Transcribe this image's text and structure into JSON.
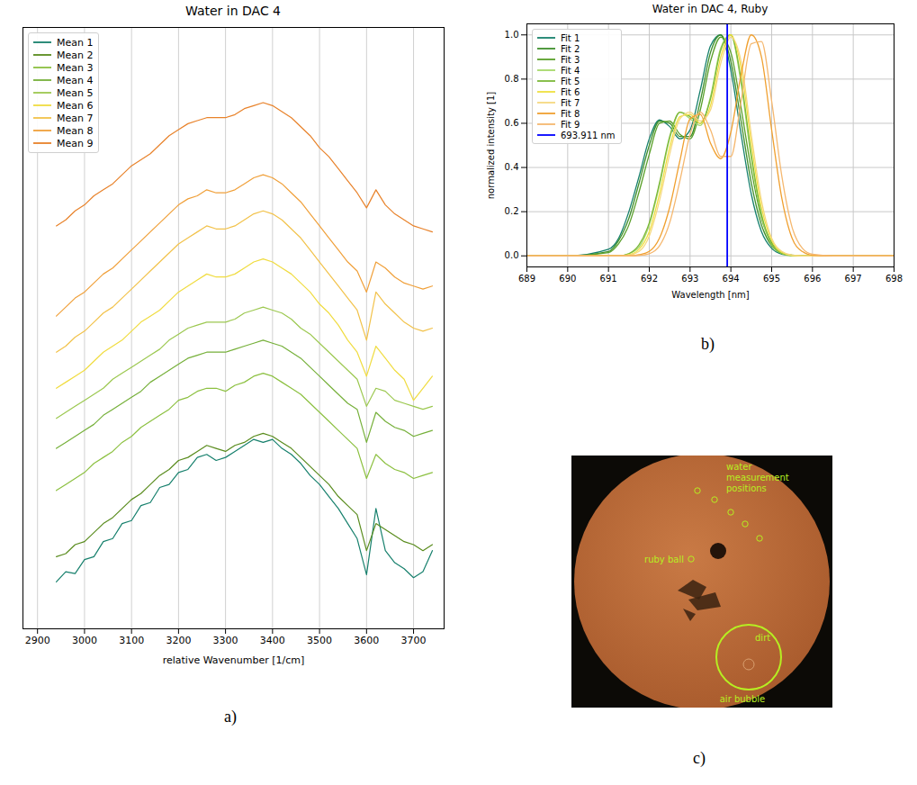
{
  "chart_data": [
    {
      "panel": "a)",
      "type": "line",
      "title": "Water in DAC 4",
      "x_label": "relative Wavenumber [1/cm]",
      "x": [
        2940,
        2960,
        2980,
        3000,
        3020,
        3040,
        3060,
        3080,
        3100,
        3120,
        3140,
        3160,
        3180,
        3200,
        3220,
        3240,
        3260,
        3280,
        3300,
        3320,
        3340,
        3360,
        3380,
        3400,
        3420,
        3440,
        3460,
        3480,
        3500,
        3520,
        3540,
        3560,
        3580,
        3600,
        3620,
        3640,
        3660,
        3680,
        3700,
        3720,
        3740
      ],
      "series": [
        {
          "name": "Mean 1",
          "color": "#17806d",
          "values": [
            7.8,
            9.5,
            9.2,
            11.5,
            12,
            14.5,
            15,
            17.5,
            18,
            20.5,
            21,
            23.5,
            24,
            26,
            26.5,
            28.5,
            29,
            28,
            28.5,
            29.5,
            30.5,
            31.5,
            31,
            31.5,
            30,
            29,
            27.5,
            25.5,
            24,
            22,
            20,
            17.5,
            15,
            9,
            20,
            13,
            11,
            10,
            8.5,
            9.5,
            13
          ]
        },
        {
          "name": "Mean 2",
          "color": "#5a8c1e",
          "values": [
            12,
            12.5,
            14,
            14.5,
            16,
            17.5,
            18.5,
            20,
            21.5,
            22.5,
            24,
            25.5,
            26.5,
            28,
            28.5,
            29.5,
            30.5,
            30,
            29.5,
            30.5,
            31,
            32,
            32.5,
            32,
            31,
            30,
            28.5,
            27,
            25.5,
            24,
            22,
            20.5,
            19,
            13,
            17.5,
            16.5,
            15.5,
            14.5,
            14,
            13,
            14
          ]
        },
        {
          "name": "Mean 3",
          "color": "#8cc040",
          "values": [
            23,
            24,
            25,
            26,
            27.5,
            28.5,
            29.5,
            31,
            32,
            33.5,
            34.5,
            35.5,
            36.5,
            38,
            38.5,
            39.5,
            40,
            40,
            39.5,
            40.5,
            41,
            42,
            42.5,
            42,
            41,
            40,
            39,
            37.5,
            36,
            34.5,
            33,
            31.5,
            30,
            25,
            29,
            27.5,
            26.5,
            26,
            25,
            25.5,
            26
          ]
        },
        {
          "name": "Mean 4",
          "color": "#76b03a",
          "values": [
            30,
            31,
            32,
            33,
            34,
            35.5,
            36.5,
            37.5,
            38.5,
            39.5,
            41,
            42,
            43,
            44,
            45,
            45.5,
            46,
            46,
            46,
            46.5,
            47,
            47.5,
            48,
            47.5,
            47,
            46,
            45,
            43.5,
            42,
            40.5,
            39,
            37.5,
            36.5,
            31,
            36,
            34.5,
            33.5,
            33,
            32,
            32.5,
            33
          ]
        },
        {
          "name": "Mean 5",
          "color": "#9cc850",
          "values": [
            35,
            36,
            37,
            38,
            39,
            40,
            41.5,
            42.5,
            43.5,
            44.5,
            45.5,
            46.5,
            48,
            49,
            50,
            50.5,
            51,
            51,
            51,
            51.5,
            52.5,
            53,
            53.5,
            53,
            52.5,
            51.5,
            50,
            49,
            47.5,
            46,
            44.5,
            43,
            41.5,
            37,
            40,
            39.5,
            38,
            37.5,
            37,
            36.5,
            37
          ]
        },
        {
          "name": "Mean 6",
          "color": "#f0dc40",
          "values": [
            40,
            41,
            42,
            43,
            44.5,
            46,
            47,
            48,
            49.5,
            51,
            52,
            53,
            54.5,
            56,
            57,
            58,
            59,
            58.5,
            58.5,
            59,
            60,
            61,
            61.5,
            61,
            60,
            59,
            57.5,
            56,
            54,
            52.5,
            50.5,
            48,
            46,
            42,
            47,
            45,
            43,
            41.5,
            38,
            40,
            42
          ]
        },
        {
          "name": "Mean 7",
          "color": "#f2c24a",
          "values": [
            46,
            47,
            48.5,
            49.5,
            51,
            52.5,
            53.5,
            55,
            56.5,
            58,
            59.5,
            61,
            62.5,
            64,
            65,
            66,
            67,
            66.5,
            66.5,
            67,
            68,
            69,
            69.5,
            69,
            68,
            66.5,
            65,
            63,
            61,
            59,
            57,
            55,
            53,
            48,
            56,
            54,
            52.5,
            51,
            50,
            49.5,
            50
          ]
        },
        {
          "name": "Mean 8",
          "color": "#f0a03a",
          "values": [
            52,
            53.5,
            55,
            56,
            57.5,
            59,
            60,
            61.5,
            63,
            64.5,
            66,
            67.5,
            69,
            70.5,
            71.5,
            72,
            73,
            72.5,
            72.5,
            73,
            74,
            75,
            75.5,
            75,
            74,
            72.5,
            71,
            69,
            67,
            65,
            63,
            61,
            59.5,
            56,
            61,
            60,
            58.5,
            57.5,
            57,
            56.5,
            57
          ]
        },
        {
          "name": "Mean 9",
          "color": "#e8822a",
          "values": [
            67,
            68,
            69.5,
            70.5,
            72,
            73,
            74,
            75.5,
            77,
            78,
            79,
            80.5,
            82,
            83,
            84,
            84.5,
            85,
            85,
            85,
            85.5,
            86.5,
            87,
            87.5,
            87,
            86,
            85,
            83.5,
            82,
            80,
            78.5,
            76.5,
            74.5,
            72.5,
            70,
            73,
            70.5,
            69,
            68,
            67,
            66.5,
            66
          ]
        }
      ],
      "xlim": [
        2869,
        3765
      ],
      "xticks": [
        2900,
        3000,
        3100,
        3200,
        3300,
        3400,
        3500,
        3600,
        3700
      ],
      "ylim": [
        0,
        100
      ],
      "grid": true,
      "legend": "upper left",
      "tick_labels": "x"
    },
    {
      "panel": "b)",
      "type": "line",
      "title": "Water in DAC 4, Ruby",
      "x_label": "Wavelength [nm]",
      "y_label": "normalized intensity [1]",
      "x": [
        689,
        690,
        691,
        691.25,
        691.5,
        691.75,
        692,
        692.25,
        692.5,
        692.75,
        693,
        693.25,
        693.5,
        693.75,
        694,
        694.25,
        694.5,
        694.75,
        695,
        695.25,
        695.5,
        695.75,
        696,
        696.5,
        697,
        698
      ],
      "series": [
        {
          "name": "Fit 1",
          "color": "#17806d",
          "values": [
            0,
            0,
            0.03,
            0.08,
            0.2,
            0.36,
            0.53,
            0.615,
            0.585,
            0.53,
            0.57,
            0.75,
            0.95,
            1,
            0.84,
            0.55,
            0.28,
            0.11,
            0.034,
            0.008,
            0.002,
            0,
            0,
            0,
            0,
            0
          ]
        },
        {
          "name": "Fit 2",
          "color": "#3f8f2c",
          "values": [
            0,
            0,
            0.02,
            0.07,
            0.17,
            0.33,
            0.5,
            0.61,
            0.6,
            0.54,
            0.54,
            0.7,
            0.92,
            1,
            0.88,
            0.61,
            0.33,
            0.14,
            0.045,
            0.011,
            0.002,
            0,
            0,
            0,
            0,
            0
          ]
        },
        {
          "name": "Fit 3",
          "color": "#5aa02a",
          "values": [
            0,
            0,
            0.015,
            0.055,
            0.14,
            0.29,
            0.46,
            0.6,
            0.61,
            0.55,
            0.53,
            0.66,
            0.88,
            0.99,
            0.92,
            0.67,
            0.39,
            0.17,
            0.06,
            0.015,
            0.003,
            0,
            0,
            0,
            0,
            0
          ]
        },
        {
          "name": "Fit 4",
          "color": "#a6d86a",
          "values": [
            0,
            0,
            0,
            0,
            0.01,
            0.04,
            0.14,
            0.32,
            0.53,
            0.65,
            0.62,
            0.59,
            0.72,
            0.94,
            1,
            0.78,
            0.44,
            0.18,
            0.05,
            0.01,
            0,
            0,
            0,
            0,
            0,
            0
          ]
        },
        {
          "name": "Fit 5",
          "color": "#7cb83a",
          "values": [
            0,
            0,
            0,
            0,
            0.01,
            0.05,
            0.15,
            0.33,
            0.54,
            0.65,
            0.63,
            0.6,
            0.71,
            0.93,
            1,
            0.8,
            0.46,
            0.19,
            0.055,
            0.012,
            0.002,
            0,
            0,
            0,
            0,
            0
          ]
        },
        {
          "name": "Fit 6",
          "color": "#f0e040",
          "values": [
            0,
            0,
            0,
            0,
            0.005,
            0.03,
            0.11,
            0.28,
            0.49,
            0.63,
            0.64,
            0.6,
            0.68,
            0.9,
            1,
            0.85,
            0.51,
            0.22,
            0.07,
            0.015,
            0.002,
            0,
            0,
            0,
            0,
            0
          ]
        },
        {
          "name": "Fit 7",
          "color": "#f5d880",
          "values": [
            0,
            0,
            0,
            0,
            0.003,
            0.02,
            0.09,
            0.25,
            0.46,
            0.62,
            0.65,
            0.61,
            0.66,
            0.87,
            0.99,
            0.88,
            0.55,
            0.25,
            0.08,
            0.02,
            0.003,
            0,
            0,
            0,
            0,
            0
          ]
        },
        {
          "name": "Fit 8",
          "color": "#f0a030",
          "values": [
            0,
            0,
            0,
            0,
            0,
            0.005,
            0.02,
            0.08,
            0.22,
            0.43,
            0.62,
            0.64,
            0.51,
            0.44,
            0.56,
            0.82,
            1,
            0.9,
            0.57,
            0.26,
            0.08,
            0.02,
            0.003,
            0,
            0,
            0
          ]
        },
        {
          "name": "Fit 9",
          "color": "#f5b870",
          "values": [
            0,
            0,
            0,
            0,
            0,
            0.002,
            0.01,
            0.045,
            0.15,
            0.34,
            0.55,
            0.65,
            0.57,
            0.45,
            0.45,
            0.7,
            0.96,
            0.97,
            0.7,
            0.36,
            0.13,
            0.035,
            0.007,
            0,
            0,
            0
          ]
        }
      ],
      "reference_line": {
        "name": "693.911 nm",
        "x": 693.911,
        "color": "#0000ff"
      },
      "xlim": [
        689,
        698
      ],
      "xticks": [
        689,
        690,
        691,
        692,
        693,
        694,
        695,
        696,
        697,
        698
      ],
      "ylim": [
        -0.05,
        1.05
      ],
      "yticks": [
        {
          "value": 0,
          "label": "0.0"
        },
        {
          "value": 0.2,
          "label": "0.2"
        },
        {
          "value": 0.4,
          "label": "0.4"
        },
        {
          "value": 0.6,
          "label": "0.6"
        },
        {
          "value": 0.8,
          "label": "0.8"
        },
        {
          "value": 1,
          "label": "1.0"
        }
      ],
      "grid": true,
      "legend": "upper left"
    }
  ],
  "image": {
    "panel": "c)",
    "labels": [
      "water measurement positions",
      "ruby ball",
      "dirt",
      "air bubble"
    ]
  }
}
